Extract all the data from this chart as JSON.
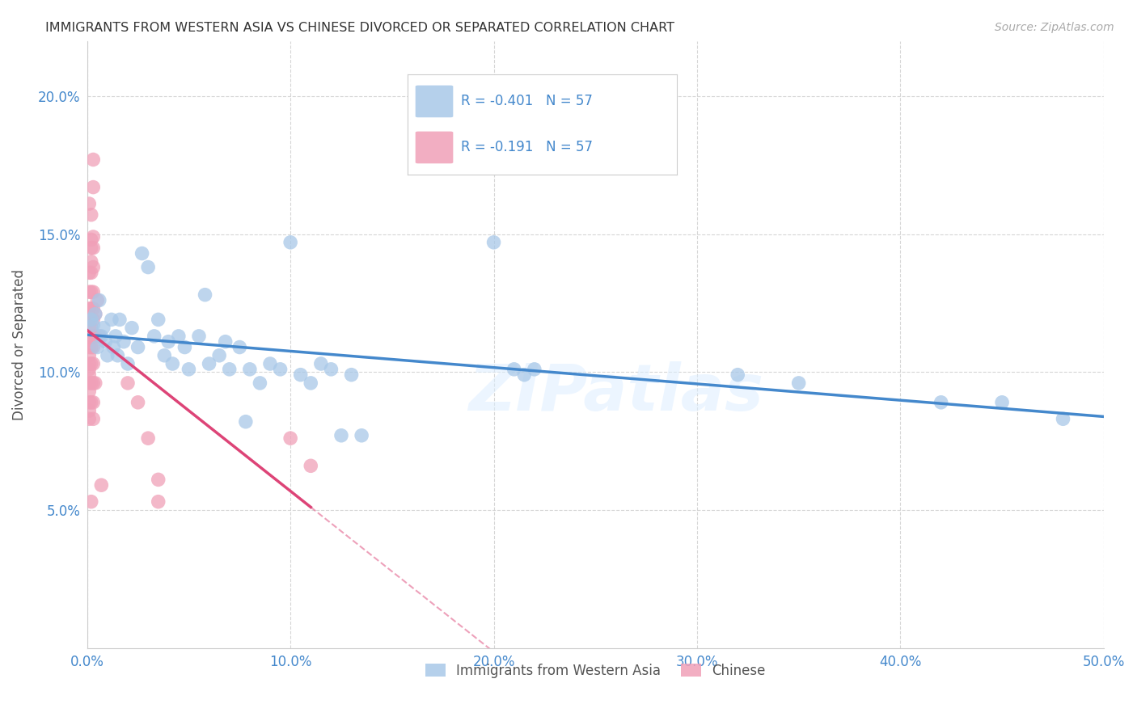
{
  "title": "IMMIGRANTS FROM WESTERN ASIA VS CHINESE DIVORCED OR SEPARATED CORRELATION CHART",
  "source": "Source: ZipAtlas.com",
  "ylabel": "Divorced or Separated",
  "xlim": [
    0.0,
    0.5
  ],
  "ylim": [
    0.0,
    0.22
  ],
  "xticks": [
    0.0,
    0.1,
    0.2,
    0.3,
    0.4,
    0.5
  ],
  "yticks": [
    0.05,
    0.1,
    0.15,
    0.2
  ],
  "xtick_labels": [
    "0.0%",
    "10.0%",
    "20.0%",
    "30.0%",
    "40.0%",
    "50.0%"
  ],
  "ytick_labels": [
    "5.0%",
    "10.0%",
    "15.0%",
    "20.0%"
  ],
  "legend_label1": "Immigrants from Western Asia",
  "legend_label2": "Chinese",
  "R1": "-0.401",
  "N1": "57",
  "R2": "-0.191",
  "N2": "57",
  "color_blue": "#a8c8e8",
  "color_pink": "#f0a0b8",
  "trendline_blue": "#4488cc",
  "trendline_pink": "#dd4477",
  "watermark": "ZIPatlas",
  "blue_points": [
    [
      0.002,
      0.119
    ],
    [
      0.003,
      0.117
    ],
    [
      0.004,
      0.121
    ],
    [
      0.005,
      0.109
    ],
    [
      0.006,
      0.126
    ],
    [
      0.007,
      0.113
    ],
    [
      0.008,
      0.116
    ],
    [
      0.009,
      0.111
    ],
    [
      0.01,
      0.106
    ],
    [
      0.012,
      0.119
    ],
    [
      0.013,
      0.109
    ],
    [
      0.014,
      0.113
    ],
    [
      0.015,
      0.106
    ],
    [
      0.016,
      0.119
    ],
    [
      0.018,
      0.111
    ],
    [
      0.02,
      0.103
    ],
    [
      0.022,
      0.116
    ],
    [
      0.025,
      0.109
    ],
    [
      0.027,
      0.143
    ],
    [
      0.03,
      0.138
    ],
    [
      0.033,
      0.113
    ],
    [
      0.035,
      0.119
    ],
    [
      0.038,
      0.106
    ],
    [
      0.04,
      0.111
    ],
    [
      0.042,
      0.103
    ],
    [
      0.045,
      0.113
    ],
    [
      0.048,
      0.109
    ],
    [
      0.05,
      0.101
    ],
    [
      0.055,
      0.113
    ],
    [
      0.058,
      0.128
    ],
    [
      0.06,
      0.103
    ],
    [
      0.065,
      0.106
    ],
    [
      0.068,
      0.111
    ],
    [
      0.07,
      0.101
    ],
    [
      0.075,
      0.109
    ],
    [
      0.078,
      0.082
    ],
    [
      0.08,
      0.101
    ],
    [
      0.085,
      0.096
    ],
    [
      0.09,
      0.103
    ],
    [
      0.095,
      0.101
    ],
    [
      0.1,
      0.147
    ],
    [
      0.105,
      0.099
    ],
    [
      0.11,
      0.096
    ],
    [
      0.115,
      0.103
    ],
    [
      0.12,
      0.101
    ],
    [
      0.125,
      0.077
    ],
    [
      0.13,
      0.099
    ],
    [
      0.135,
      0.077
    ],
    [
      0.2,
      0.147
    ],
    [
      0.21,
      0.101
    ],
    [
      0.215,
      0.099
    ],
    [
      0.22,
      0.101
    ],
    [
      0.32,
      0.099
    ],
    [
      0.35,
      0.096
    ],
    [
      0.42,
      0.089
    ],
    [
      0.45,
      0.089
    ],
    [
      0.48,
      0.083
    ]
  ],
  "pink_points": [
    [
      0.001,
      0.136
    ],
    [
      0.001,
      0.129
    ],
    [
      0.001,
      0.123
    ],
    [
      0.001,
      0.119
    ],
    [
      0.001,
      0.116
    ],
    [
      0.001,
      0.113
    ],
    [
      0.001,
      0.109
    ],
    [
      0.001,
      0.106
    ],
    [
      0.001,
      0.103
    ],
    [
      0.001,
      0.101
    ],
    [
      0.001,
      0.099
    ],
    [
      0.001,
      0.096
    ],
    [
      0.001,
      0.093
    ],
    [
      0.001,
      0.089
    ],
    [
      0.001,
      0.086
    ],
    [
      0.001,
      0.083
    ],
    [
      0.001,
      0.161
    ],
    [
      0.002,
      0.157
    ],
    [
      0.002,
      0.148
    ],
    [
      0.002,
      0.145
    ],
    [
      0.002,
      0.14
    ],
    [
      0.002,
      0.136
    ],
    [
      0.002,
      0.129
    ],
    [
      0.002,
      0.123
    ],
    [
      0.002,
      0.116
    ],
    [
      0.002,
      0.109
    ],
    [
      0.002,
      0.103
    ],
    [
      0.002,
      0.096
    ],
    [
      0.002,
      0.089
    ],
    [
      0.002,
      0.053
    ],
    [
      0.003,
      0.177
    ],
    [
      0.003,
      0.167
    ],
    [
      0.003,
      0.149
    ],
    [
      0.003,
      0.145
    ],
    [
      0.003,
      0.138
    ],
    [
      0.003,
      0.129
    ],
    [
      0.003,
      0.123
    ],
    [
      0.003,
      0.119
    ],
    [
      0.003,
      0.113
    ],
    [
      0.003,
      0.109
    ],
    [
      0.003,
      0.103
    ],
    [
      0.003,
      0.096
    ],
    [
      0.003,
      0.089
    ],
    [
      0.003,
      0.083
    ],
    [
      0.004,
      0.121
    ],
    [
      0.004,
      0.113
    ],
    [
      0.004,
      0.096
    ],
    [
      0.005,
      0.126
    ],
    [
      0.006,
      0.113
    ],
    [
      0.007,
      0.059
    ],
    [
      0.02,
      0.096
    ],
    [
      0.025,
      0.089
    ],
    [
      0.03,
      0.076
    ],
    [
      0.035,
      0.053
    ],
    [
      0.1,
      0.076
    ],
    [
      0.11,
      0.066
    ],
    [
      0.035,
      0.061
    ]
  ]
}
